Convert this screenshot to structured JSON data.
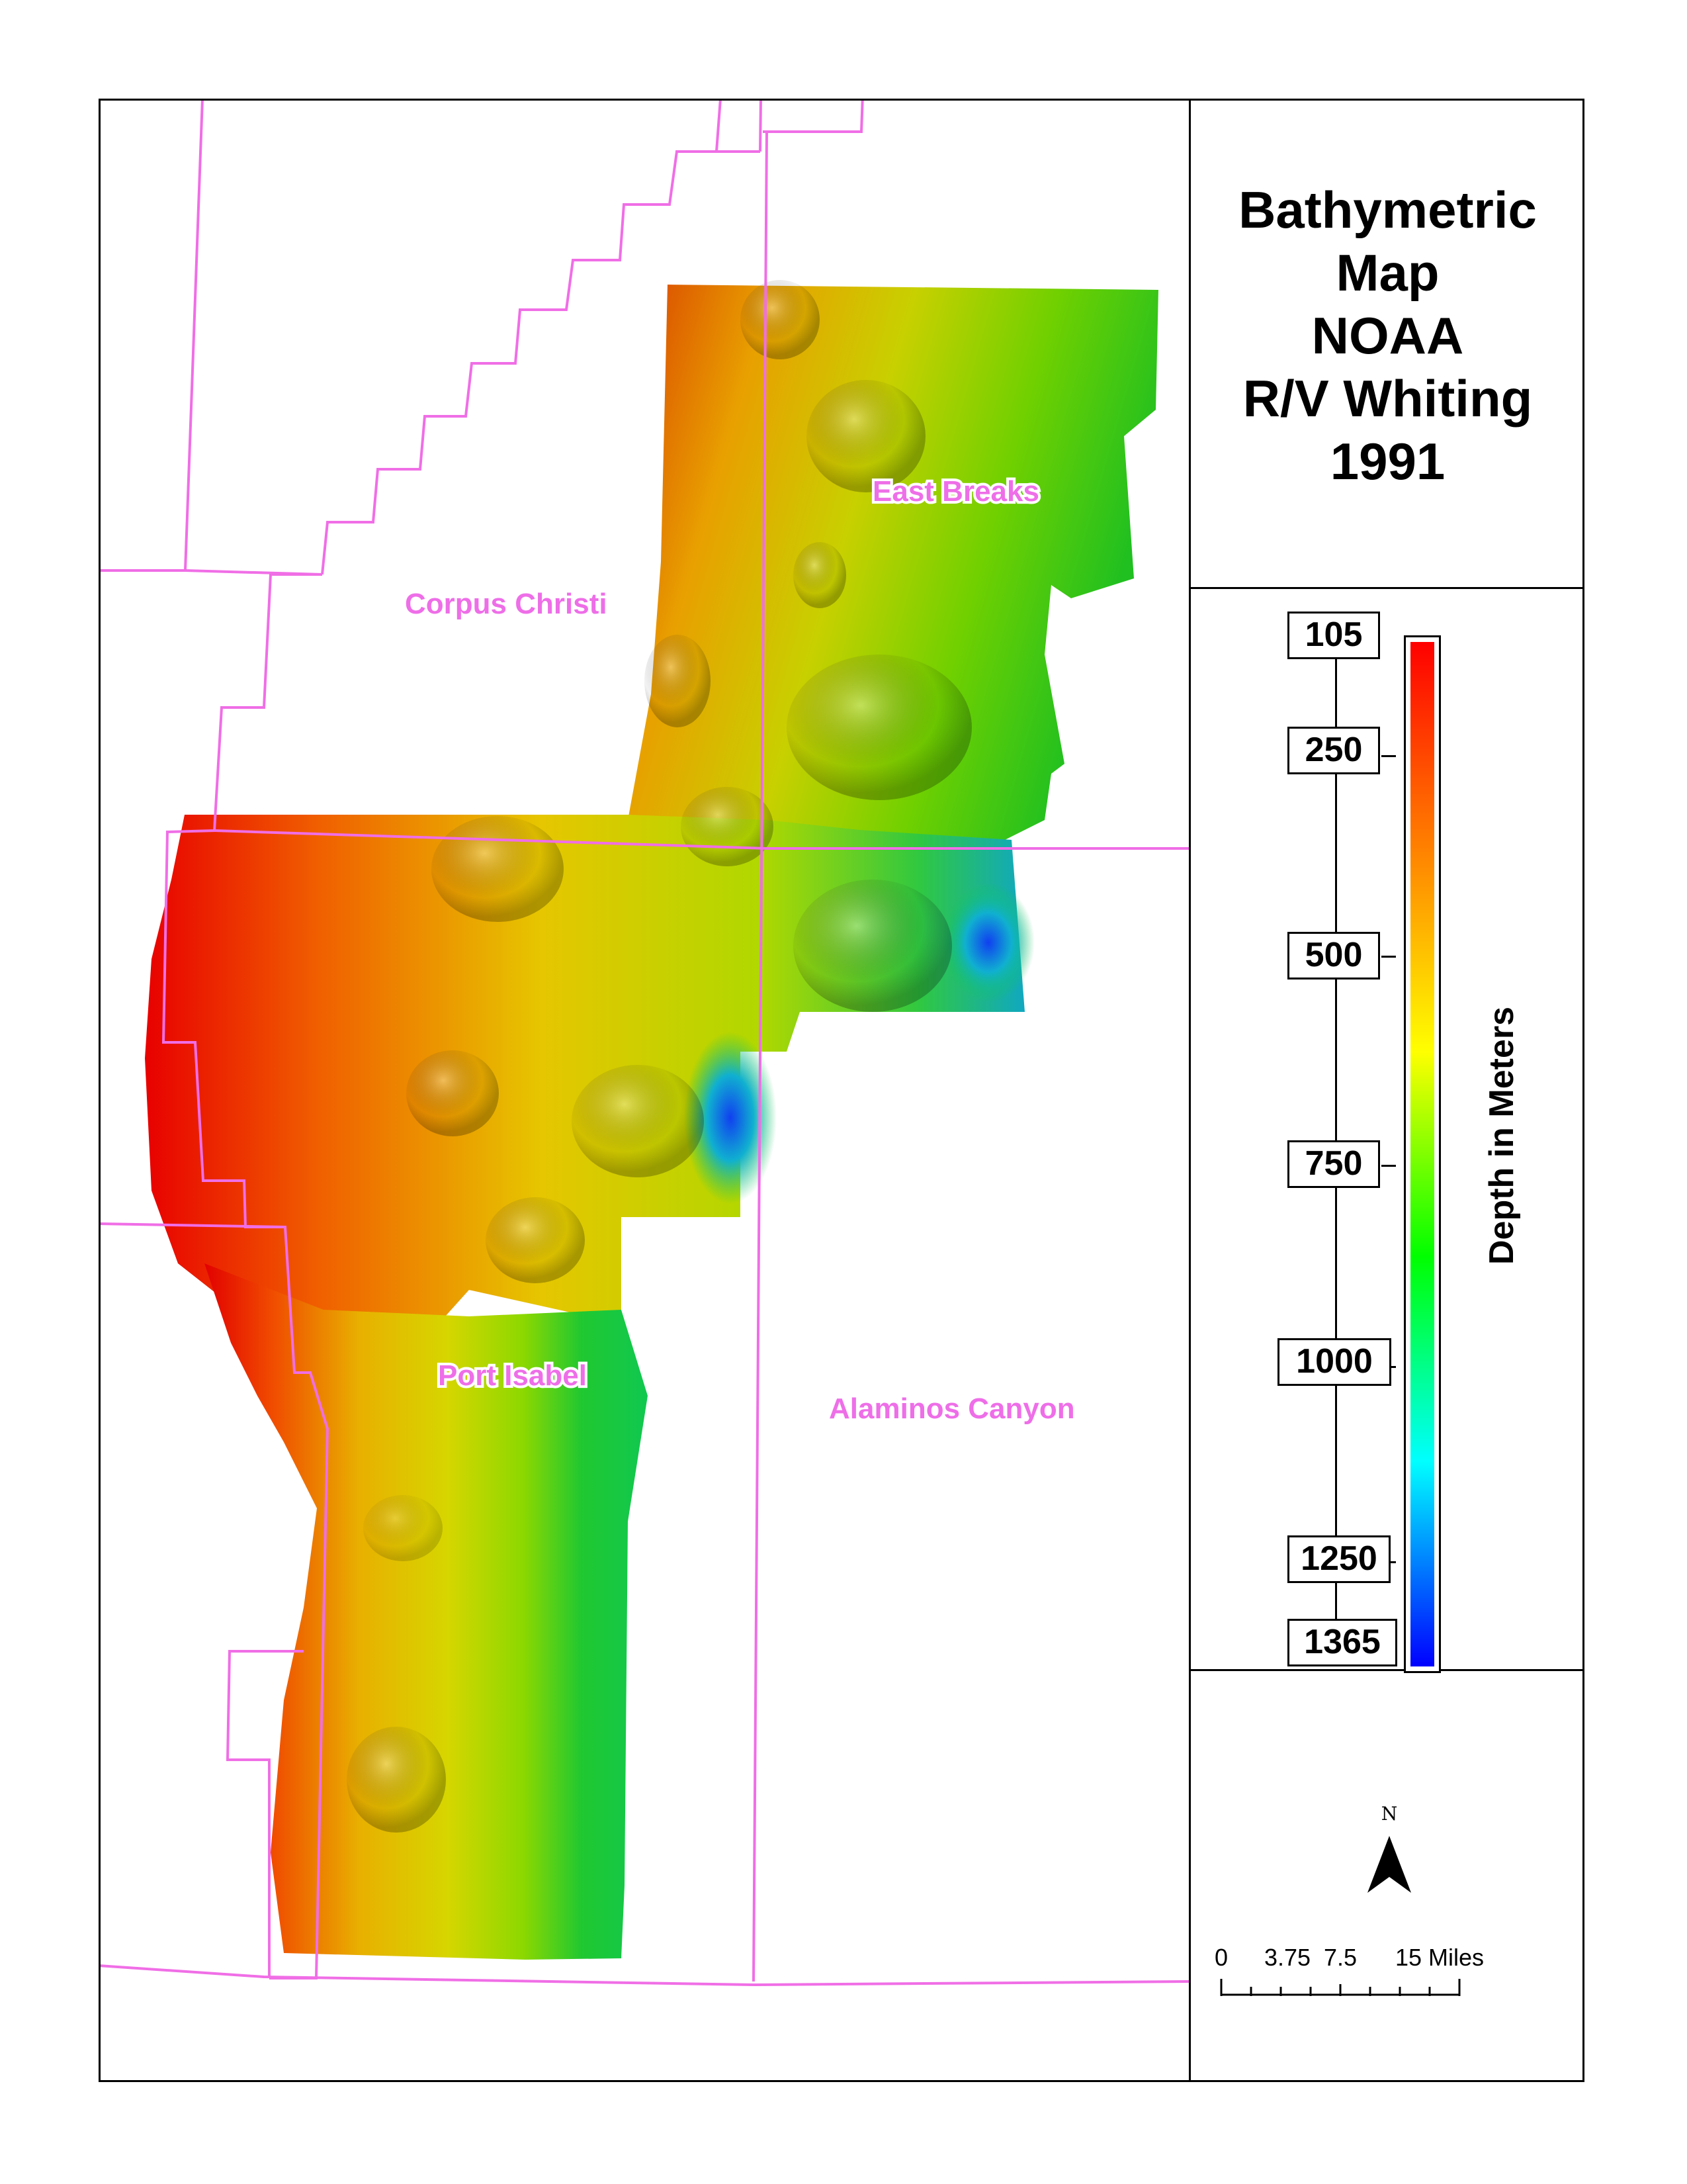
{
  "title": {
    "lines": [
      "Bathymetric",
      "Map",
      "NOAA",
      "R/V Whiting",
      "1991"
    ]
  },
  "map": {
    "boundary_color": "#f06ee6",
    "area_labels": {
      "corpus_christi": "Corpus Christi",
      "east_breaks": "East Breaks",
      "port_isabel": "Port Isabel",
      "alaminos_canyon": "Alaminos Canyon"
    },
    "color_ramp": [
      "#ff0000",
      "#ff8000",
      "#ffff00",
      "#00ff00",
      "#00ffff",
      "#0000ff"
    ]
  },
  "legend": {
    "title": "Depth in Meters",
    "labels": [
      "105",
      "250",
      "500",
      "750",
      "1000",
      "1250",
      "1365"
    ],
    "min_depth": 105,
    "max_depth": 1365
  },
  "north_arrow": {
    "letter": "N"
  },
  "scale_bar": {
    "labels": [
      "0",
      "3.75",
      "7.5",
      "15 Miles"
    ]
  }
}
